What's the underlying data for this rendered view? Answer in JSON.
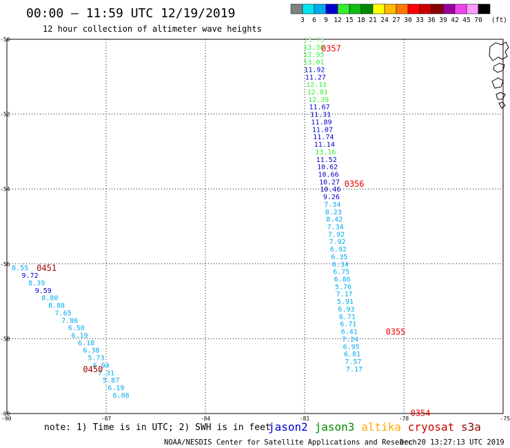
{
  "header": {
    "title": "00:00 — 11:59 UTC 12/19/2019",
    "subtitle": "12 hour collection of altimeter wave heights"
  },
  "colorbar": {
    "unit": "(ft)",
    "labels": [
      "3",
      "6",
      "9",
      "12",
      "15",
      "18",
      "21",
      "24",
      "27",
      "30",
      "33",
      "36",
      "39",
      "42",
      "45",
      "70"
    ],
    "colors": [
      "#808080",
      "#00e5ee",
      "#00aaee",
      "#0000cc",
      "#33ee33",
      "#11bb11",
      "#008800",
      "#ffff00",
      "#ffbb00",
      "#ff7700",
      "#ff0000",
      "#cc0000",
      "#880000",
      "#990099",
      "#ee44ee",
      "#ff99ff",
      "#000000"
    ]
  },
  "footer": {
    "note": "note: 1) Time is in UTC; 2) SWH is in feet",
    "credit": "NOAA/NESDIS Center for Satellite Applications and Research",
    "generated": "Dec 20 13:27:13 UTC 2019"
  },
  "legend": [
    {
      "name": "jason2",
      "color": "#0000cc"
    },
    {
      "name": "jason3",
      "color": "#008800"
    },
    {
      "name": "altika",
      "color": "#ffaa00"
    },
    {
      "name": "cryosat",
      "color": "#cc0000"
    },
    {
      "name": "s3a",
      "color": "#880000"
    }
  ],
  "chart_data": {
    "type": "scatter",
    "title": "00:00 — 11:59 UTC 12/19/2019",
    "subtitle": "12 hour collection of altimeter wave heights",
    "xlim": [
      -90,
      -75
    ],
    "ylim": [
      -60,
      -50
    ],
    "xticks": [
      "-90",
      "-87",
      "-84",
      "-81",
      "-78",
      "-75"
    ],
    "yticks": [
      "-50",
      "-52",
      "-54",
      "-56",
      "-58",
      "-60"
    ],
    "grid": true,
    "time_labels": [
      {
        "text": "0357",
        "lon": -80.5,
        "lat": -50.23,
        "color": "#ee0000"
      },
      {
        "text": "0356",
        "lon": -79.8,
        "lat": -53.85,
        "color": "#ee0000"
      },
      {
        "text": "0355",
        "lon": -78.55,
        "lat": -57.8,
        "color": "#ee0000"
      },
      {
        "text": "0354",
        "lon": -77.8,
        "lat": -59.97,
        "color": "#ee0000"
      },
      {
        "text": "0451",
        "lon": -89.1,
        "lat": -56.1,
        "color": "#990000"
      },
      {
        "text": "0450",
        "lon": -87.7,
        "lat": -58.8,
        "color": "#990000"
      }
    ],
    "series": [
      {
        "name": "jason3",
        "points": [
          {
            "lon": -80.72,
            "lat": -50.0,
            "v": "13.75",
            "c": "#99ee99"
          },
          {
            "lon": -80.72,
            "lat": -50.2,
            "v": "13.30",
            "c": "#33ee33"
          },
          {
            "lon": -80.72,
            "lat": -50.4,
            "v": "12.95",
            "c": "#33ee33"
          },
          {
            "lon": -80.72,
            "lat": -50.6,
            "v": "13.01",
            "c": "#33ee33"
          },
          {
            "lon": -80.7,
            "lat": -50.8,
            "v": "11.92",
            "c": "#0000cc"
          },
          {
            "lon": -80.67,
            "lat": -51.0,
            "v": "11.27",
            "c": "#0000cc"
          },
          {
            "lon": -80.64,
            "lat": -51.2,
            "v": "12.11",
            "c": "#33ee33"
          },
          {
            "lon": -80.61,
            "lat": -51.4,
            "v": "12.81",
            "c": "#33ee33"
          },
          {
            "lon": -80.58,
            "lat": -51.6,
            "v": "12.39",
            "c": "#33ee33"
          },
          {
            "lon": -80.55,
            "lat": -51.8,
            "v": "11.67",
            "c": "#0000cc"
          },
          {
            "lon": -80.52,
            "lat": -52.0,
            "v": "11.31",
            "c": "#0000cc"
          },
          {
            "lon": -80.49,
            "lat": -52.2,
            "v": "11.89",
            "c": "#0000cc"
          },
          {
            "lon": -80.46,
            "lat": -52.4,
            "v": "11.07",
            "c": "#0000cc"
          },
          {
            "lon": -80.43,
            "lat": -52.6,
            "v": "11.74",
            "c": "#0000cc"
          },
          {
            "lon": -80.4,
            "lat": -52.8,
            "v": "11.14",
            "c": "#0000cc"
          },
          {
            "lon": -80.37,
            "lat": -53.0,
            "v": "13.16",
            "c": "#33ee33"
          },
          {
            "lon": -80.34,
            "lat": -53.2,
            "v": "11.52",
            "c": "#0000cc"
          },
          {
            "lon": -80.31,
            "lat": -53.4,
            "v": "10.62",
            "c": "#0000cc"
          },
          {
            "lon": -80.28,
            "lat": -53.6,
            "v": "10.66",
            "c": "#0000cc"
          },
          {
            "lon": -80.25,
            "lat": -53.8,
            "v": "10.27",
            "c": "#0000cc"
          },
          {
            "lon": -80.22,
            "lat": -54.0,
            "v": "10.46",
            "c": "#0000cc"
          },
          {
            "lon": -80.19,
            "lat": -54.2,
            "v": "9.26",
            "c": "#0000cc"
          },
          {
            "lon": -80.16,
            "lat": -54.4,
            "v": "7.34",
            "c": "#00aaee"
          },
          {
            "lon": -80.13,
            "lat": -54.6,
            "v": "8.23",
            "c": "#00aaee"
          },
          {
            "lon": -80.1,
            "lat": -54.8,
            "v": "8.42",
            "c": "#00aaee"
          },
          {
            "lon": -80.07,
            "lat": -55.0,
            "v": "7.34",
            "c": "#00aaee"
          },
          {
            "lon": -80.04,
            "lat": -55.2,
            "v": "7.92",
            "c": "#00aaee"
          },
          {
            "lon": -80.01,
            "lat": -55.4,
            "v": "7.92",
            "c": "#00aaee"
          },
          {
            "lon": -79.98,
            "lat": -55.6,
            "v": "6.92",
            "c": "#00aaee"
          },
          {
            "lon": -79.95,
            "lat": -55.8,
            "v": "6.35",
            "c": "#00aaee"
          },
          {
            "lon": -79.92,
            "lat": -56.0,
            "v": "6.34",
            "c": "#00aaee"
          },
          {
            "lon": -79.89,
            "lat": -56.2,
            "v": "6.75",
            "c": "#00aaee"
          },
          {
            "lon": -79.86,
            "lat": -56.4,
            "v": "6.86",
            "c": "#00aaee"
          },
          {
            "lon": -79.83,
            "lat": -56.6,
            "v": "5.76",
            "c": "#00aaee"
          },
          {
            "lon": -79.8,
            "lat": -56.8,
            "v": "7.17",
            "c": "#00aaee"
          },
          {
            "lon": -79.77,
            "lat": -57.0,
            "v": "5.91",
            "c": "#00aaee"
          },
          {
            "lon": -79.74,
            "lat": -57.2,
            "v": "6.93",
            "c": "#00aaee"
          },
          {
            "lon": -79.71,
            "lat": -57.4,
            "v": "6.71",
            "c": "#00aaee"
          },
          {
            "lon": -79.68,
            "lat": -57.6,
            "v": "6.71",
            "c": "#00aaee"
          },
          {
            "lon": -79.65,
            "lat": -57.8,
            "v": "6.41",
            "c": "#00aaee"
          },
          {
            "lon": -79.62,
            "lat": -58.0,
            "v": "7.24",
            "c": "#00aaee"
          },
          {
            "lon": -79.59,
            "lat": -58.2,
            "v": "6.95",
            "c": "#00aaee"
          },
          {
            "lon": -79.56,
            "lat": -58.4,
            "v": "6.81",
            "c": "#00aaee"
          },
          {
            "lon": -79.53,
            "lat": -58.6,
            "v": "7.57",
            "c": "#00aaee"
          },
          {
            "lon": -79.5,
            "lat": -58.8,
            "v": "7.17",
            "c": "#00aaee"
          }
        ]
      },
      {
        "name": "s3a",
        "points": [
          {
            "lon": -89.6,
            "lat": -56.1,
            "v": "8.55",
            "c": "#00aaee"
          },
          {
            "lon": -89.3,
            "lat": -56.3,
            "v": "9.72",
            "c": "#0000cc"
          },
          {
            "lon": -89.1,
            "lat": -56.5,
            "v": "8.39",
            "c": "#00aaee"
          },
          {
            "lon": -88.9,
            "lat": -56.7,
            "v": "9.59",
            "c": "#0000cc"
          },
          {
            "lon": -88.7,
            "lat": -56.9,
            "v": "8.80",
            "c": "#00aaee"
          },
          {
            "lon": -88.5,
            "lat": -57.1,
            "v": "8.88",
            "c": "#00aaee"
          },
          {
            "lon": -88.3,
            "lat": -57.3,
            "v": "7.65",
            "c": "#00aaee"
          },
          {
            "lon": -88.1,
            "lat": -57.5,
            "v": "7.86",
            "c": "#00aaee"
          },
          {
            "lon": -87.9,
            "lat": -57.7,
            "v": "6.50",
            "c": "#00aaee"
          },
          {
            "lon": -87.8,
            "lat": -57.9,
            "v": "6.19",
            "c": "#00aaee"
          },
          {
            "lon": -87.6,
            "lat": -58.1,
            "v": "6.18",
            "c": "#00aaee"
          },
          {
            "lon": -87.45,
            "lat": -58.3,
            "v": "6.38",
            "c": "#00aaee"
          },
          {
            "lon": -87.3,
            "lat": -58.5,
            "v": "5.73",
            "c": "#00aaee"
          },
          {
            "lon": -87.15,
            "lat": -58.7,
            "v": "6.94",
            "c": "#00aaee"
          },
          {
            "lon": -87.0,
            "lat": -58.9,
            "v": "7.31",
            "c": "#00aaee"
          },
          {
            "lon": -86.85,
            "lat": -59.1,
            "v": "5.87",
            "c": "#00aaee"
          },
          {
            "lon": -86.7,
            "lat": -59.3,
            "v": "6.19",
            "c": "#00aaee"
          },
          {
            "lon": -86.55,
            "lat": -59.5,
            "v": "6.08",
            "c": "#00aaee"
          }
        ]
      }
    ]
  }
}
